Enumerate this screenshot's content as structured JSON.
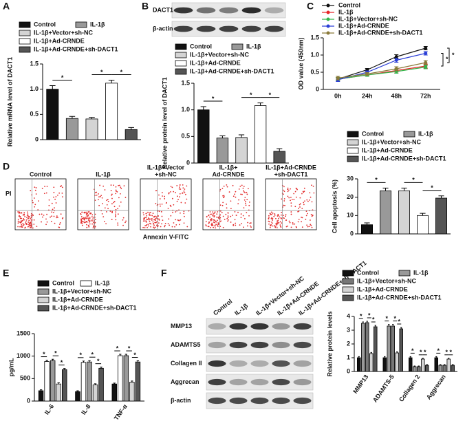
{
  "chart_data": [
    {
      "type": "bar",
      "panel": "A",
      "y_label": "Relative mRNA level of DACT1",
      "ylim": [
        0,
        1.5
      ],
      "yticks": [
        0,
        0.5,
        {
          "value": 1,
          "label": "1.0"
        },
        1.5
      ],
      "series": [
        {
          "name": "Control",
          "color": "#111111",
          "values": [
            1.0
          ],
          "errors": [
            0.07
          ]
        },
        {
          "name": "IL-1β",
          "color": "#999999",
          "values": [
            0.42
          ],
          "errors": [
            0.04
          ]
        },
        {
          "name": "IL-1β+Vector+sh-NC",
          "color": "#d4d4d4",
          "values": [
            0.41
          ],
          "errors": [
            0.03
          ]
        },
        {
          "name": "IL-1β+Ad-CRNDE",
          "color": "#ffffff",
          "values": [
            1.12
          ],
          "errors": [
            0.06
          ]
        },
        {
          "name": "IL-1β+Ad-CRNDE+sh-DACT1",
          "color": "#555555",
          "values": [
            0.2
          ],
          "errors": [
            0.04
          ]
        }
      ],
      "comparisons": [
        {
          "text": "*",
          "between": [
            0,
            1
          ]
        },
        {
          "text": "*",
          "between": [
            2,
            3
          ]
        },
        {
          "text": "*",
          "between": [
            3,
            4
          ]
        }
      ]
    },
    {
      "type": "blot",
      "panel": "B",
      "rows": [
        "DACT1",
        "β-actin"
      ]
    },
    {
      "type": "bar",
      "y_label": "Relative protein level of DACT1",
      "ylim": [
        0,
        1.5
      ],
      "yticks": [
        0,
        0.5,
        {
          "value": 1,
          "label": "1.0"
        },
        1.5
      ],
      "series": [
        {
          "name": "Control",
          "color": "#111111",
          "values": [
            1.0
          ],
          "errors": [
            0.06
          ]
        },
        {
          "name": "IL-1β",
          "color": "#999999",
          "values": [
            0.47
          ],
          "errors": [
            0.04
          ]
        },
        {
          "name": "IL-1β+Vector+sh-NC",
          "color": "#d4d4d4",
          "values": [
            0.48
          ],
          "errors": [
            0.05
          ]
        },
        {
          "name": "IL-1β+Ad-CRNDE",
          "color": "#ffffff",
          "values": [
            1.08
          ],
          "errors": [
            0.05
          ]
        },
        {
          "name": "IL-1β+Ad-CRNDE+sh-DACT1",
          "color": "#555555",
          "values": [
            0.22
          ],
          "errors": [
            0.05
          ]
        }
      ],
      "comparisons": [
        {
          "text": "*",
          "between": [
            0,
            1
          ]
        },
        {
          "text": "*",
          "between": [
            2,
            3
          ]
        },
        {
          "text": "*",
          "between": [
            3,
            4
          ]
        }
      ]
    },
    {
      "type": "line",
      "panel": "C",
      "y_label": "OD value (450nm)",
      "categories": [
        "0h",
        "24h",
        "48h",
        "72h"
      ],
      "ylim": [
        0,
        1.5
      ],
      "yticks": [
        0,
        0.5,
        {
          "value": 1,
          "label": "1.0"
        },
        1.5
      ],
      "series": [
        {
          "name": "Control",
          "color": "#111111",
          "values": [
            0.3,
            0.57,
            0.95,
            1.2
          ],
          "errors": [
            0.05,
            0.04,
            0.06,
            0.05
          ]
        },
        {
          "name": "IL-1β",
          "color": "#e8262a",
          "values": [
            0.3,
            0.42,
            0.55,
            0.68
          ],
          "errors": [
            0.05,
            0.04,
            0.05,
            0.06
          ]
        },
        {
          "name": "IL-1β+Vector+sh-NC",
          "color": "#33b54a",
          "values": [
            0.3,
            0.42,
            0.52,
            0.65
          ],
          "errors": [
            0.05,
            0.04,
            0.05,
            0.05
          ]
        },
        {
          "name": "IL-1β+Ad-CRNDE",
          "color": "#2b3fd6",
          "values": [
            0.28,
            0.5,
            0.85,
            1.05
          ],
          "errors": [
            0.05,
            0.04,
            0.06,
            0.05
          ]
        },
        {
          "name": "IL-1β+Ad-CRNDE+sh-DACT1",
          "color": "#8a7a3a",
          "values": [
            0.33,
            0.45,
            0.6,
            0.78
          ],
          "errors": [
            0.05,
            0.04,
            0.06,
            0.06
          ]
        }
      ],
      "comparisons": [
        {
          "text": "*",
          "between": [
            3,
            1
          ]
        },
        {
          "text": "*",
          "between": [
            0,
            4
          ]
        }
      ]
    },
    {
      "type": "flow",
      "panel": "D",
      "y_label": "PI",
      "x_label": "Annexin V-FITC",
      "panels": [
        [
          "Control"
        ],
        [
          "IL-1β"
        ],
        [
          "IL-1β+Vector",
          "+sh-NC"
        ],
        [
          "IL-1β+",
          "Ad-CRNDE"
        ],
        [
          "IL-1β+Ad-CRNDE",
          "+sh-DACT1"
        ]
      ]
    },
    {
      "type": "bar",
      "y_label": "Cell apoptosis (%)",
      "ylim": [
        0,
        30
      ],
      "yticks": [
        0,
        10,
        20,
        30
      ],
      "series": [
        {
          "name": "Control",
          "color": "#111111",
          "values": [
            5
          ],
          "errors": [
            1
          ]
        },
        {
          "name": "IL-1β",
          "color": "#999999",
          "values": [
            23.5
          ],
          "errors": [
            1.5
          ]
        },
        {
          "name": "IL-1β+Vector+sh-NC",
          "color": "#d4d4d4",
          "values": [
            23.5
          ],
          "errors": [
            1.5
          ]
        },
        {
          "name": "IL-1β+Ad-CRNDE",
          "color": "#ffffff",
          "values": [
            10
          ],
          "errors": [
            1.2
          ]
        },
        {
          "name": "IL-1β+Ad-CRNDE+sh-DACT1",
          "color": "#555555",
          "values": [
            19.5
          ],
          "errors": [
            1.2
          ]
        }
      ],
      "comparisons": [
        {
          "text": "*",
          "between": [
            0,
            1
          ]
        },
        {
          "text": "*",
          "between": [
            2,
            3
          ]
        },
        {
          "text": "*",
          "between": [
            3,
            4
          ]
        }
      ]
    },
    {
      "type": "bar",
      "panel": "E",
      "y_label": "pg/mL",
      "categories": [
        "IL-6",
        "IL-8",
        "TNF-α"
      ],
      "ylim": [
        0,
        1500
      ],
      "yticks": [
        0,
        500,
        1000,
        1500
      ],
      "series": [
        {
          "name": "Control",
          "color": "#111111",
          "values": [
            230,
            210,
            380
          ],
          "errors": [
            20,
            20,
            20
          ]
        },
        {
          "name": "IL-1β",
          "color": "#ffffff",
          "values": [
            880,
            860,
            1010
          ],
          "errors": [
            30,
            30,
            30
          ]
        },
        {
          "name": "IL-1β+Vector+sh-NC",
          "color": "#999999",
          "values": [
            900,
            870,
            1010
          ],
          "errors": [
            30,
            30,
            30
          ]
        },
        {
          "name": "IL-1β+Ad-CRNDE",
          "color": "#d4d4d4",
          "values": [
            380,
            360,
            420
          ],
          "errors": [
            25,
            25,
            25
          ]
        },
        {
          "name": "IL-1β+Ad-CRNDE+sh-DACT1",
          "color": "#555555",
          "values": [
            700,
            730,
            870
          ],
          "errors": [
            25,
            25,
            25
          ]
        }
      ],
      "comparisons": [
        {
          "text": "*",
          "category": 0,
          "between": [
            0,
            1
          ]
        },
        {
          "text": "*",
          "category": 0,
          "between": [
            2,
            3
          ]
        },
        {
          "text": "*",
          "category": 0,
          "between": [
            3,
            4
          ]
        },
        {
          "text": "*",
          "category": 1,
          "between": [
            0,
            1
          ]
        },
        {
          "text": "*",
          "category": 1,
          "between": [
            2,
            3
          ]
        },
        {
          "text": "*",
          "category": 1,
          "between": [
            3,
            4
          ]
        },
        {
          "text": "*",
          "category": 2,
          "between": [
            0,
            1
          ]
        },
        {
          "text": "*",
          "category": 2,
          "between": [
            2,
            3
          ]
        },
        {
          "text": "*",
          "category": 2,
          "between": [
            3,
            4
          ]
        }
      ]
    },
    {
      "type": "blot",
      "panel": "F",
      "rows": [
        "MMP13",
        "ADAMTS5",
        "Collagen II",
        "Aggrecan",
        "β-actin"
      ],
      "lanes": [
        "Control",
        "IL-1β",
        "IL-1β+Vector+sh-NC",
        "IL-1β+Ad-CRNDE",
        "IL-1β+Ad-CRNDE+sh-DACT1"
      ]
    },
    {
      "type": "bar",
      "y_label": "Relative protein levels",
      "categories": [
        "MMP13",
        "ADAMTS-5",
        "Collagen 2",
        "Aggrecan"
      ],
      "ylim": [
        0,
        4
      ],
      "yticks": [
        0,
        1,
        2,
        3,
        4
      ],
      "series": [
        {
          "name": "Control",
          "color": "#111111",
          "values": [
            1,
            1,
            1,
            1
          ],
          "errors": [
            0.08,
            0.08,
            0.08,
            0.08
          ]
        },
        {
          "name": "IL-1β",
          "color": "#999999",
          "values": [
            3.5,
            3.3,
            0.35,
            0.45
          ],
          "errors": [
            0.1,
            0.12,
            0.05,
            0.05
          ]
        },
        {
          "name": "IL-1β+Vector+sh-NC",
          "color": "#777777",
          "values": [
            3.55,
            3.3,
            0.35,
            0.45
          ],
          "errors": [
            0.1,
            0.12,
            0.05,
            0.05
          ]
        },
        {
          "name": "IL-1β+Ad-CRNDE",
          "color": "#d4d4d4",
          "values": [
            1.3,
            1.35,
            0.9,
            0.9
          ],
          "errors": [
            0.08,
            0.08,
            0.06,
            0.06
          ]
        },
        {
          "name": "IL-1β+Ad-CRNDE+sh-DACT1",
          "color": "#555555",
          "values": [
            3.25,
            3.1,
            0.45,
            0.45
          ],
          "errors": [
            0.1,
            0.1,
            0.05,
            0.05
          ]
        }
      ],
      "comparisons": [
        {
          "text": "*",
          "category": 0,
          "between": [
            0,
            1
          ]
        },
        {
          "text": "*",
          "category": 0,
          "between": [
            2,
            3
          ]
        },
        {
          "text": "*",
          "category": 0,
          "between": [
            3,
            4
          ]
        },
        {
          "text": "*",
          "category": 1,
          "between": [
            0,
            1
          ]
        },
        {
          "text": "*",
          "category": 1,
          "between": [
            2,
            3
          ]
        },
        {
          "text": "*",
          "category": 1,
          "between": [
            3,
            4
          ]
        },
        {
          "text": "*",
          "category": 2,
          "between": [
            0,
            1
          ]
        },
        {
          "text": "*",
          "category": 2,
          "between": [
            2,
            3
          ]
        },
        {
          "text": "*",
          "category": 2,
          "between": [
            3,
            4
          ]
        },
        {
          "text": "*",
          "category": 3,
          "between": [
            0,
            1
          ]
        },
        {
          "text": "*",
          "category": 3,
          "between": [
            2,
            3
          ]
        },
        {
          "text": "*",
          "category": 3,
          "between": [
            3,
            4
          ]
        }
      ]
    }
  ]
}
